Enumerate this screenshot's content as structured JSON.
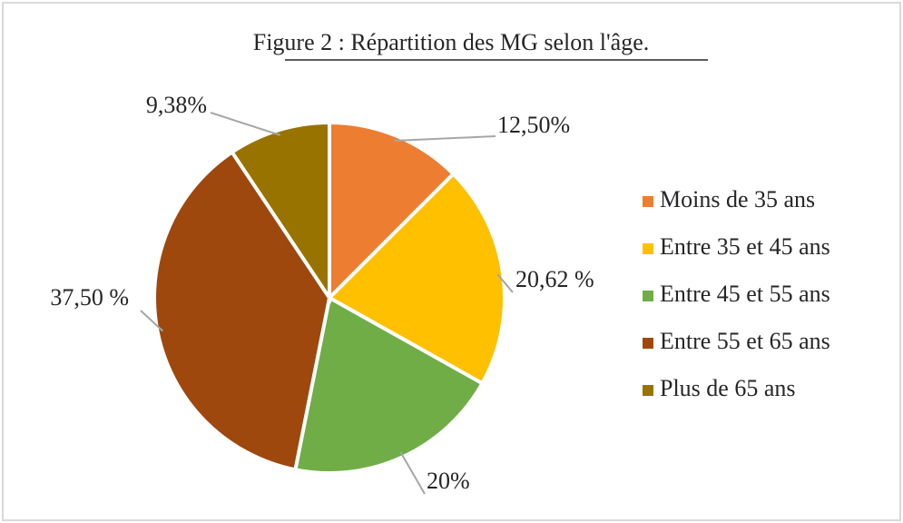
{
  "chart_data": {
    "type": "pie",
    "title": "Figure 2 : Répartition des MG selon l'âge.",
    "categories": [
      "Moins de 35 ans",
      "Entre 35 et 45 ans",
      "Entre 45 et 55 ans",
      "Entre 55 et 65 ans",
      "Plus de 65 ans"
    ],
    "values": [
      12.5,
      20.62,
      20,
      37.5,
      9.38
    ],
    "value_labels": [
      "12,50%",
      "20,62 %",
      "20%",
      "37,50 %",
      "9,38%"
    ],
    "colors": [
      "#ed7d31",
      "#ffc000",
      "#70ad47",
      "#9e480e",
      "#997300"
    ],
    "legend": "right"
  }
}
